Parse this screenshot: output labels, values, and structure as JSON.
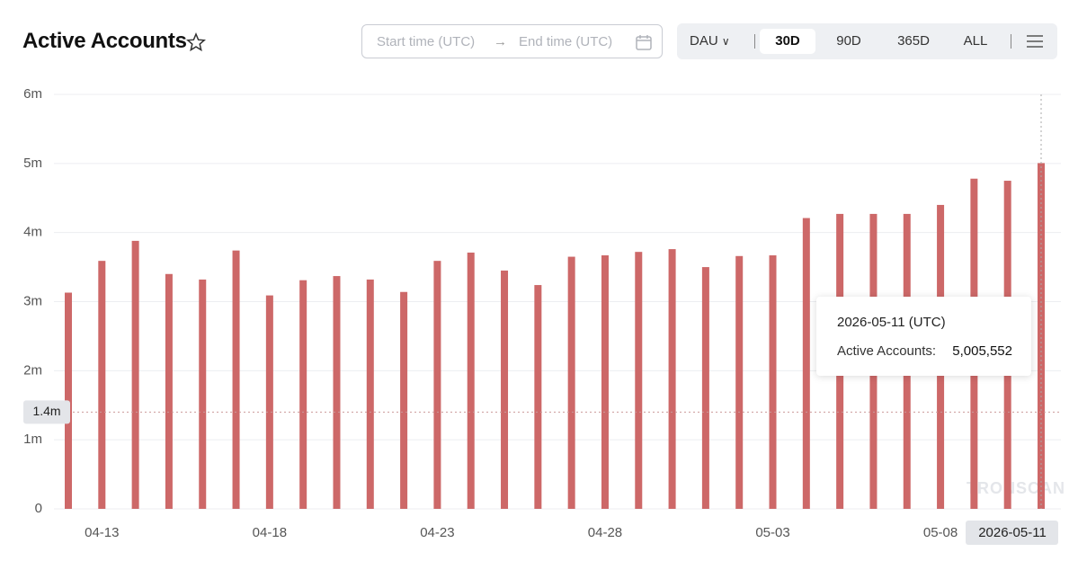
{
  "header": {
    "title": "Active Accounts",
    "start_placeholder": "Start time (UTC)",
    "end_placeholder": "End time (UTC)",
    "metric": "DAU",
    "ranges": [
      "30D",
      "90D",
      "365D",
      "ALL"
    ],
    "active_range": 0,
    "watermark": "TRONSCAN"
  },
  "chart_data": {
    "type": "bar",
    "categories": [
      null,
      "04-13",
      null,
      null,
      null,
      null,
      "04-18",
      null,
      null,
      null,
      null,
      "04-23",
      null,
      null,
      null,
      null,
      "04-28",
      null,
      null,
      null,
      null,
      "05-03",
      null,
      null,
      null,
      null,
      "05-08",
      null,
      null,
      "2026-05-11"
    ],
    "values": [
      3.13,
      3.59,
      3.88,
      3.4,
      3.32,
      3.74,
      3.09,
      3.31,
      3.37,
      3.32,
      3.14,
      3.59,
      3.71,
      3.45,
      3.24,
      3.65,
      3.67,
      3.72,
      3.76,
      3.5,
      3.66,
      3.67,
      4.21,
      4.27,
      4.27,
      4.27,
      4.4,
      4.78,
      4.75,
      5.005552
    ],
    "color": "#cd6868",
    "ylim": [
      0,
      6
    ],
    "yticks": [
      0,
      {
        "value": 1,
        "label": "1m"
      },
      {
        "value": 2,
        "label": "2m"
      },
      {
        "value": 3,
        "label": "3m"
      },
      {
        "value": 4,
        "label": "4m"
      },
      {
        "value": 5,
        "label": "5m"
      },
      {
        "value": 6,
        "label": "6m"
      }
    ],
    "grid": true,
    "highlight": 29,
    "crosshair": {
      "value": 1.4,
      "label": "1.4m"
    },
    "tooltip": {
      "title": "2026-05-11 (UTC)",
      "series_label": "Active Accounts:",
      "value_label": "5,005,552"
    }
  }
}
